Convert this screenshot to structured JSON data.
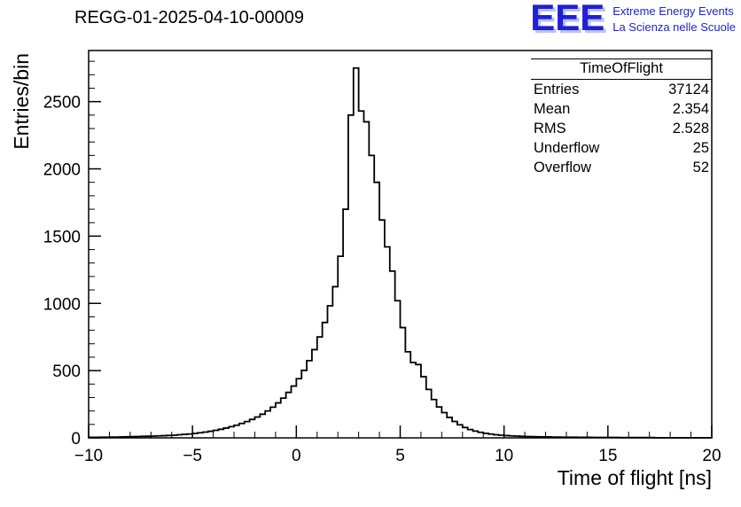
{
  "logo": {
    "text": "EEE",
    "line1": "Extreme Energy Events",
    "line2": "La Scienza nelle Scuole",
    "color": "#1f1fd6"
  },
  "stats": {
    "title": "TimeOfFlight",
    "rows": [
      {
        "label": "Entries",
        "value": "37124"
      },
      {
        "label": "Mean",
        "value": "2.354"
      },
      {
        "label": "RMS",
        "value": "2.528"
      },
      {
        "label": "Underflow",
        "value": "25"
      },
      {
        "label": "Overflow",
        "value": "52"
      }
    ]
  },
  "chart_data": {
    "type": "bar",
    "style": "step-histogram",
    "title": "REGG-01-2025-04-10-00009",
    "xlabel": "Time of flight [ns]",
    "ylabel": "Entries/bin",
    "xlim": [
      -10,
      20
    ],
    "ylim": [
      0,
      2880
    ],
    "bin_start": -10,
    "bin_width": 0.25,
    "values": [
      4,
      4,
      5,
      5,
      6,
      6,
      7,
      8,
      9,
      10,
      11,
      12,
      13,
      15,
      16,
      18,
      20,
      23,
      26,
      29,
      33,
      38,
      43,
      49,
      56,
      64,
      73,
      83,
      94,
      107,
      121,
      137,
      155,
      176,
      200,
      228,
      260,
      296,
      338,
      385,
      440,
      502,
      574,
      656,
      750,
      858,
      982,
      1124,
      1350,
      1700,
      2400,
      2750,
      2430,
      2350,
      2100,
      1900,
      1620,
      1420,
      1240,
      1020,
      820,
      640,
      560,
      545,
      455,
      360,
      285,
      230,
      188,
      152,
      122,
      97,
      77,
      62,
      50,
      41,
      34,
      28,
      23,
      20,
      17,
      15,
      13,
      11,
      10,
      9,
      8,
      7,
      7,
      6,
      6,
      5,
      5,
      5,
      4,
      4,
      4,
      3,
      3,
      3,
      3,
      3,
      2,
      2,
      2,
      2,
      2,
      2,
      2,
      1,
      1,
      1,
      1,
      1,
      1,
      1,
      1,
      1,
      1,
      1
    ],
    "x_ticks": [
      {
        "v": -10,
        "label": "−10"
      },
      {
        "v": -5,
        "label": "−5"
      },
      {
        "v": 0,
        "label": "0"
      },
      {
        "v": 5,
        "label": "5"
      },
      {
        "v": 10,
        "label": "10"
      },
      {
        "v": 15,
        "label": "15"
      },
      {
        "v": 20,
        "label": "20"
      }
    ],
    "y_ticks": [
      {
        "v": 0,
        "label": "0"
      },
      {
        "v": 500,
        "label": "500"
      },
      {
        "v": 1000,
        "label": "1000"
      },
      {
        "v": 1500,
        "label": "1500"
      },
      {
        "v": 2000,
        "label": "2000"
      },
      {
        "v": 2500,
        "label": "2500"
      }
    ],
    "x_minor_step": 1,
    "y_minor_step": 100,
    "grid": false,
    "line_color": "#000000",
    "background": "#ffffff"
  }
}
